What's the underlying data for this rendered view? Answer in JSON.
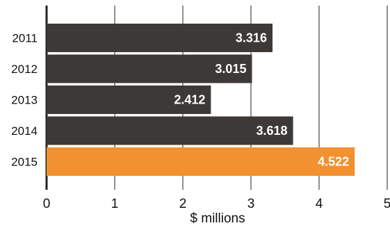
{
  "chart_data": {
    "type": "bar",
    "orientation": "horizontal",
    "categories": [
      "2011",
      "2012",
      "2013",
      "2014",
      "2015"
    ],
    "values": [
      3.316,
      3.015,
      2.412,
      3.618,
      4.522
    ],
    "value_labels": [
      "3.316",
      "3.015",
      "2.412",
      "3.618",
      "4.522"
    ],
    "xlabel": "$ millions",
    "xlim": [
      0,
      5
    ],
    "xticks": [
      "0",
      "1",
      "2",
      "3",
      "4",
      "5"
    ],
    "grid": "vertical",
    "colors": {
      "bar": "#3d3937",
      "highlight": "#f29130",
      "grid": "#222222",
      "label": "#ffffff"
    },
    "highlight_category": "2015"
  }
}
